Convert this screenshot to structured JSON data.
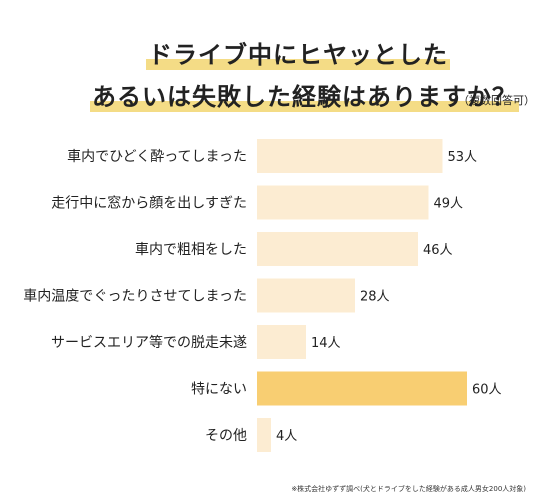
{
  "title": {
    "line1": "ドライブ中にヒヤッとした",
    "line2": "あるいは失敗した経験はありますか？",
    "note": "（複数回答可）"
  },
  "colors": {
    "bar": "#fcecd2",
    "highlight": "#f8ce72",
    "title_marker": "#f4dc86"
  },
  "chart_data": {
    "type": "bar",
    "orientation": "horizontal",
    "categories": [
      "車内でひどく酔ってしまった",
      "走行中に窓から顔を出しすぎた",
      "車内で粗相をした",
      "車内温度でぐったりさせてしまった",
      "サービスエリア等での脱走未遂",
      "特にない",
      "その他"
    ],
    "values": [
      53,
      49,
      46,
      28,
      14,
      60,
      4
    ],
    "value_labels": [
      "53人",
      "49人",
      "46人",
      "28人",
      "14人",
      "60人",
      "4人"
    ],
    "highlight_index": 5,
    "xlim": [
      0,
      60
    ],
    "grid": false,
    "legend": "none"
  },
  "footnote": "※株式会社ゆずず調べ(犬とドライブをした経験がある成人男女200人対象)"
}
